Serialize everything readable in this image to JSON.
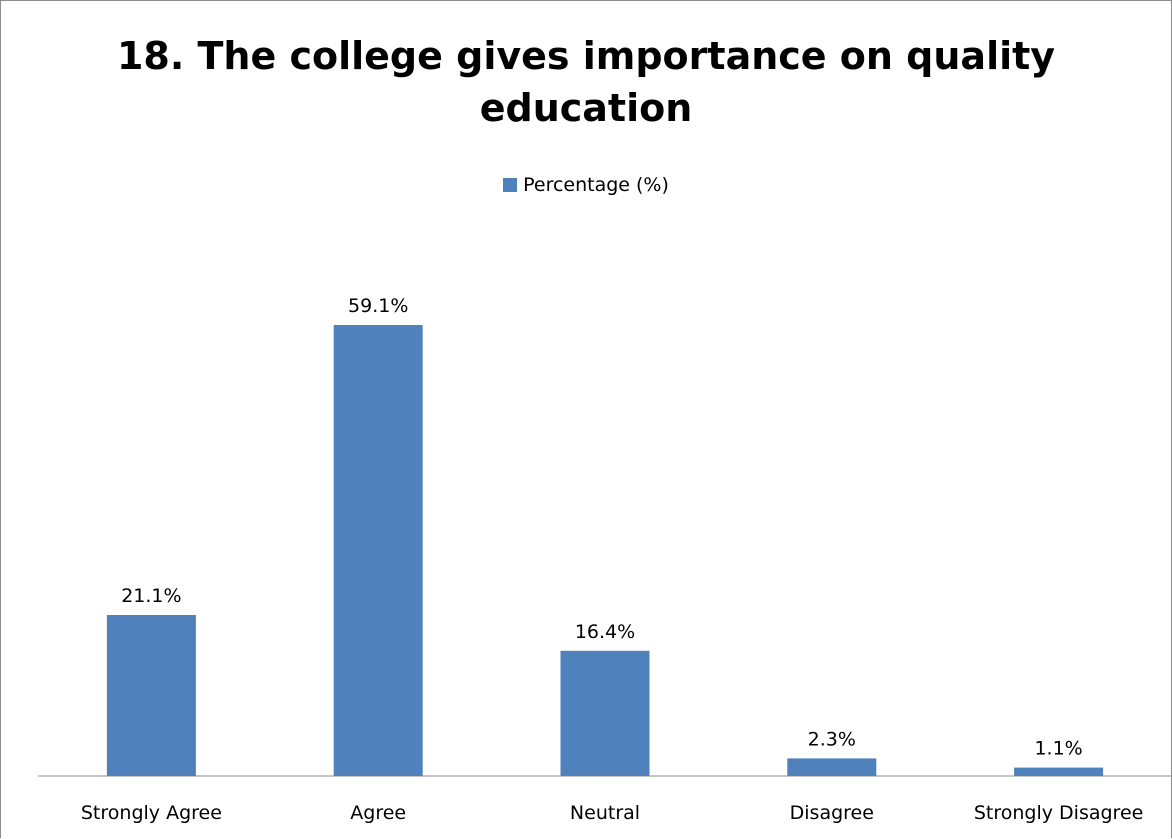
{
  "chart_data": {
    "type": "bar",
    "title": "18. The college gives importance on quality education",
    "categories": [
      "Strongly Agree",
      "Agree",
      "Neutral",
      "Disagree",
      "Strongly Disagree"
    ],
    "series": [
      {
        "name": "Percentage (%)",
        "values": [
          21.1,
          59.1,
          16.4,
          2.3,
          1.1
        ],
        "labels": [
          "21.1%",
          "59.1%",
          "16.4%",
          "2.3%",
          "1.1%"
        ],
        "color": "#4F81BD"
      }
    ],
    "xlabel": "",
    "ylabel": "",
    "ylim": [
      0,
      59.1
    ],
    "grid": false,
    "legend_position": "top-center"
  }
}
